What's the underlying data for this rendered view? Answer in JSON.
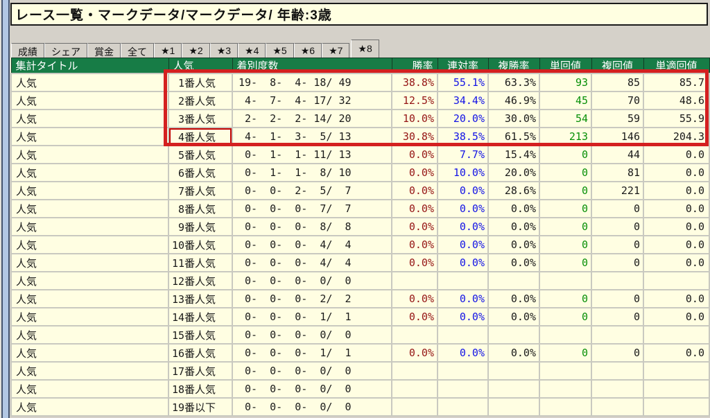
{
  "window": {
    "title": "レース一覧・マークデータ/マークデータ/ 年齢:3歳"
  },
  "tabs": [
    {
      "label": "成績",
      "selected": false
    },
    {
      "label": "シェア",
      "selected": false
    },
    {
      "label": "賞金",
      "selected": false
    },
    {
      "label": "全て",
      "selected": false
    },
    {
      "label": "★1",
      "selected": false
    },
    {
      "label": "★2",
      "selected": false
    },
    {
      "label": "★3",
      "selected": false
    },
    {
      "label": "★4",
      "selected": false
    },
    {
      "label": "★5",
      "selected": false
    },
    {
      "label": "★6",
      "selected": false
    },
    {
      "label": "★7",
      "selected": false
    },
    {
      "label": "★8",
      "selected": true
    }
  ],
  "table": {
    "columns": [
      "集計タイトル",
      "人気",
      "着別度数",
      "勝率",
      "連対率",
      "複勝率",
      "単回値",
      "複回値",
      "単適回値"
    ],
    "rows": [
      {
        "title": "人気",
        "rank": " 1番人気",
        "counts": "19-  8-  4- 18/ 49",
        "win": "38.8%",
        "ren": "55.1%",
        "fuku": "63.3%",
        "tan_roi": "93",
        "fuku_roi": "85",
        "tanteki_roi": "85.7",
        "boxed": false
      },
      {
        "title": "人気",
        "rank": " 2番人気",
        "counts": " 4-  7-  4- 17/ 32",
        "win": "12.5%",
        "ren": "34.4%",
        "fuku": "46.9%",
        "tan_roi": "45",
        "fuku_roi": "70",
        "tanteki_roi": "48.6",
        "boxed": false
      },
      {
        "title": "人気",
        "rank": " 3番人気",
        "counts": " 2-  2-  2- 14/ 20",
        "win": "10.0%",
        "ren": "20.0%",
        "fuku": "30.0%",
        "tan_roi": "54",
        "fuku_roi": "59",
        "tanteki_roi": "55.9",
        "boxed": false
      },
      {
        "title": "人気",
        "rank": " 4番人気",
        "counts": " 4-  1-  3-  5/ 13",
        "win": "30.8%",
        "ren": "38.5%",
        "fuku": "61.5%",
        "tan_roi": "213",
        "fuku_roi": "146",
        "tanteki_roi": "204.3",
        "boxed": true
      },
      {
        "title": "人気",
        "rank": " 5番人気",
        "counts": " 0-  1-  1- 11/ 13",
        "win": "0.0%",
        "ren": "7.7%",
        "fuku": "15.4%",
        "tan_roi": "0",
        "fuku_roi": "44",
        "tanteki_roi": "0.0",
        "boxed": false
      },
      {
        "title": "人気",
        "rank": " 6番人気",
        "counts": " 0-  1-  1-  8/ 10",
        "win": "0.0%",
        "ren": "10.0%",
        "fuku": "20.0%",
        "tan_roi": "0",
        "fuku_roi": "81",
        "tanteki_roi": "0.0",
        "boxed": false
      },
      {
        "title": "人気",
        "rank": " 7番人気",
        "counts": " 0-  0-  2-  5/  7",
        "win": "0.0%",
        "ren": "0.0%",
        "fuku": "28.6%",
        "tan_roi": "0",
        "fuku_roi": "221",
        "tanteki_roi": "0.0",
        "boxed": false
      },
      {
        "title": "人気",
        "rank": " 8番人気",
        "counts": " 0-  0-  0-  7/  7",
        "win": "0.0%",
        "ren": "0.0%",
        "fuku": "0.0%",
        "tan_roi": "0",
        "fuku_roi": "0",
        "tanteki_roi": "0.0",
        "boxed": false
      },
      {
        "title": "人気",
        "rank": " 9番人気",
        "counts": " 0-  0-  0-  8/  8",
        "win": "0.0%",
        "ren": "0.0%",
        "fuku": "0.0%",
        "tan_roi": "0",
        "fuku_roi": "0",
        "tanteki_roi": "0.0",
        "boxed": false
      },
      {
        "title": "人気",
        "rank": "10番人気",
        "counts": " 0-  0-  0-  4/  4",
        "win": "0.0%",
        "ren": "0.0%",
        "fuku": "0.0%",
        "tan_roi": "0",
        "fuku_roi": "0",
        "tanteki_roi": "0.0",
        "boxed": false
      },
      {
        "title": "人気",
        "rank": "11番人気",
        "counts": " 0-  0-  0-  4/  4",
        "win": "0.0%",
        "ren": "0.0%",
        "fuku": "0.0%",
        "tan_roi": "0",
        "fuku_roi": "0",
        "tanteki_roi": "0.0",
        "boxed": false
      },
      {
        "title": "人気",
        "rank": "12番人気",
        "counts": " 0-  0-  0-  0/  0",
        "win": "",
        "ren": "",
        "fuku": "",
        "tan_roi": "",
        "fuku_roi": "",
        "tanteki_roi": "",
        "boxed": false
      },
      {
        "title": "人気",
        "rank": "13番人気",
        "counts": " 0-  0-  0-  2/  2",
        "win": "0.0%",
        "ren": "0.0%",
        "fuku": "0.0%",
        "tan_roi": "0",
        "fuku_roi": "0",
        "tanteki_roi": "0.0",
        "boxed": false
      },
      {
        "title": "人気",
        "rank": "14番人気",
        "counts": " 0-  0-  0-  1/  1",
        "win": "0.0%",
        "ren": "0.0%",
        "fuku": "0.0%",
        "tan_roi": "0",
        "fuku_roi": "0",
        "tanteki_roi": "0.0",
        "boxed": false
      },
      {
        "title": "人気",
        "rank": "15番人気",
        "counts": " 0-  0-  0-  0/  0",
        "win": "",
        "ren": "",
        "fuku": "",
        "tan_roi": "",
        "fuku_roi": "",
        "tanteki_roi": "",
        "boxed": false
      },
      {
        "title": "人気",
        "rank": "16番人気",
        "counts": " 0-  0-  0-  1/  1",
        "win": "0.0%",
        "ren": "0.0%",
        "fuku": "0.0%",
        "tan_roi": "0",
        "fuku_roi": "0",
        "tanteki_roi": "0.0",
        "boxed": false
      },
      {
        "title": "人気",
        "rank": "17番人気",
        "counts": " 0-  0-  0-  0/  0",
        "win": "",
        "ren": "",
        "fuku": "",
        "tan_roi": "",
        "fuku_roi": "",
        "tanteki_roi": "",
        "boxed": false
      },
      {
        "title": "人気",
        "rank": "18番人気",
        "counts": " 0-  0-  0-  0/  0",
        "win": "",
        "ren": "",
        "fuku": "",
        "tan_roi": "",
        "fuku_roi": "",
        "tanteki_roi": "",
        "boxed": false
      },
      {
        "title": "人気",
        "rank": "19番以下",
        "counts": " 0-  0-  0-  0/  0",
        "win": "",
        "ren": "",
        "fuku": "",
        "tan_roi": "",
        "fuku_roi": "",
        "tanteki_roi": "",
        "boxed": false
      }
    ]
  },
  "colors": {
    "header_bg": "#177c46",
    "row_bg": "#fffee2",
    "win_rate_text": "#951515",
    "quinella_text": "#1414e6",
    "win_roi_text": "#089008",
    "highlight_border": "#d42020",
    "cell_box_border": "#c00000"
  }
}
